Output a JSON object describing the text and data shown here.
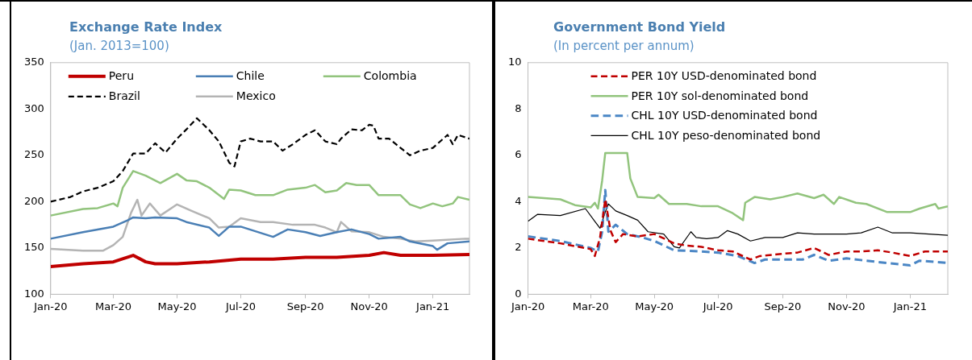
{
  "chart_data": [
    {
      "type": "line",
      "title": "Exchange Rate Index",
      "subtitle": "(Jan. 2013=100)",
      "legend": "top",
      "grid": false,
      "marker": "none",
      "xlim": [
        "2020-01-01",
        "2021-02-05"
      ],
      "xticks": [
        {
          "value": "2020-01-01",
          "label": "Jan-20"
        },
        {
          "value": "2020-03-01",
          "label": "Mar-20"
        },
        {
          "value": "2020-05-01",
          "label": "May-20"
        },
        {
          "value": "2020-07-01",
          "label": "Jul-20"
        },
        {
          "value": "2020-09-01",
          "label": "Sep-20"
        },
        {
          "value": "2020-11-01",
          "label": "Nov-20"
        },
        {
          "value": "2021-01-01",
          "label": "Jan-21"
        }
      ],
      "ylim": [
        100,
        350
      ],
      "yticks": [
        100,
        150,
        200,
        250,
        300,
        350
      ],
      "series": [
        {
          "name": "Peru",
          "color": "#c00000",
          "line_style": "solid",
          "x": [
            "2020-01-01",
            "2020-02-01",
            "2020-03-01",
            "2020-03-20",
            "2020-04-01",
            "2020-04-10",
            "2020-05-01",
            "2020-06-01",
            "2020-07-01",
            "2020-08-01",
            "2020-09-01",
            "2020-10-01",
            "2020-11-01",
            "2020-11-15",
            "2020-12-01",
            "2021-01-01",
            "2021-02-05"
          ],
          "values": [
            130,
            133,
            135,
            142,
            135,
            133,
            133,
            135,
            138,
            138,
            140,
            140,
            142,
            145,
            142,
            142,
            143
          ]
        },
        {
          "name": "Chile",
          "color": "#4a7fb5",
          "line_style": "solid",
          "x": [
            "2020-01-01",
            "2020-02-01",
            "2020-03-01",
            "2020-03-15",
            "2020-03-20",
            "2020-04-01",
            "2020-04-10",
            "2020-05-01",
            "2020-05-10",
            "2020-06-01",
            "2020-06-10",
            "2020-06-20",
            "2020-07-01",
            "2020-07-15",
            "2020-08-01",
            "2020-08-15",
            "2020-09-01",
            "2020-09-15",
            "2020-10-01",
            "2020-10-15",
            "2020-11-01",
            "2020-11-10",
            "2020-12-01",
            "2020-12-10",
            "2021-01-01",
            "2021-01-05",
            "2021-01-15",
            "2021-02-05"
          ],
          "values": [
            160,
            167,
            173,
            180,
            183,
            182,
            183,
            182,
            178,
            172,
            163,
            173,
            173,
            168,
            162,
            170,
            167,
            163,
            167,
            170,
            165,
            160,
            162,
            157,
            152,
            148,
            155,
            157
          ]
        },
        {
          "name": "Colombia",
          "color": "#92c47d",
          "line_style": "solid",
          "x": [
            "2020-01-01",
            "2020-02-01",
            "2020-02-15",
            "2020-03-01",
            "2020-03-05",
            "2020-03-10",
            "2020-03-20",
            "2020-04-01",
            "2020-04-15",
            "2020-05-01",
            "2020-05-10",
            "2020-05-20",
            "2020-06-01",
            "2020-06-15",
            "2020-06-20",
            "2020-07-01",
            "2020-07-15",
            "2020-08-01",
            "2020-08-15",
            "2020-09-01",
            "2020-09-10",
            "2020-09-20",
            "2020-10-01",
            "2020-10-10",
            "2020-10-20",
            "2020-11-01",
            "2020-11-10",
            "2020-12-01",
            "2020-12-10",
            "2020-12-20",
            "2021-01-01",
            "2021-01-10",
            "2021-01-20",
            "2021-01-25",
            "2021-02-05"
          ],
          "values": [
            185,
            192,
            193,
            198,
            195,
            215,
            233,
            228,
            220,
            230,
            223,
            222,
            215,
            203,
            213,
            212,
            207,
            207,
            213,
            215,
            218,
            210,
            212,
            220,
            218,
            218,
            207,
            207,
            197,
            193,
            198,
            195,
            198,
            205,
            202
          ]
        },
        {
          "name": "Brazil",
          "color": "#000000",
          "line_style": "dashed",
          "x": [
            "2020-01-01",
            "2020-01-20",
            "2020-02-01",
            "2020-02-15",
            "2020-03-01",
            "2020-03-10",
            "2020-03-20",
            "2020-04-01",
            "2020-04-10",
            "2020-04-20",
            "2020-05-01",
            "2020-05-10",
            "2020-05-20",
            "2020-06-01",
            "2020-06-10",
            "2020-06-20",
            "2020-06-25",
            "2020-07-01",
            "2020-07-10",
            "2020-07-20",
            "2020-08-01",
            "2020-08-10",
            "2020-08-20",
            "2020-09-01",
            "2020-09-10",
            "2020-09-20",
            "2020-10-01",
            "2020-10-05",
            "2020-10-15",
            "2020-10-25",
            "2020-11-01",
            "2020-11-05",
            "2020-11-10",
            "2020-11-20",
            "2020-12-01",
            "2020-12-10",
            "2020-12-20",
            "2021-01-01",
            "2021-01-10",
            "2021-01-15",
            "2021-01-20",
            "2021-01-25",
            "2021-02-05"
          ],
          "values": [
            200,
            205,
            211,
            215,
            222,
            233,
            252,
            252,
            263,
            253,
            268,
            278,
            290,
            277,
            265,
            242,
            238,
            265,
            268,
            265,
            265,
            255,
            262,
            272,
            277,
            265,
            262,
            268,
            278,
            277,
            283,
            282,
            268,
            268,
            258,
            250,
            255,
            258,
            267,
            272,
            262,
            272,
            268
          ]
        },
        {
          "name": "Mexico",
          "color": "#b4b4b4",
          "line_style": "solid",
          "x": [
            "2020-01-01",
            "2020-02-01",
            "2020-02-20",
            "2020-03-01",
            "2020-03-10",
            "2020-03-18",
            "2020-03-24",
            "2020-03-28",
            "2020-04-05",
            "2020-04-15",
            "2020-05-01",
            "2020-05-15",
            "2020-06-01",
            "2020-06-10",
            "2020-06-20",
            "2020-07-01",
            "2020-07-20",
            "2020-08-01",
            "2020-08-20",
            "2020-09-10",
            "2020-09-20",
            "2020-10-01",
            "2020-10-05",
            "2020-10-15",
            "2020-11-01",
            "2020-11-15",
            "2020-12-01",
            "2020-12-15",
            "2021-01-01",
            "2021-02-01",
            "2021-02-05"
          ],
          "values": [
            149,
            147,
            147,
            153,
            162,
            188,
            202,
            185,
            198,
            185,
            197,
            190,
            182,
            172,
            173,
            182,
            178,
            178,
            175,
            175,
            172,
            167,
            178,
            168,
            167,
            162,
            160,
            157,
            158,
            160,
            160
          ]
        }
      ]
    },
    {
      "type": "line",
      "title": "Government Bond Yield",
      "subtitle": "(In percent per annum)",
      "legend": "top",
      "grid": false,
      "marker": "none",
      "xlim": [
        "2020-01-01",
        "2021-02-06"
      ],
      "xticks": [
        {
          "value": "2020-01-01",
          "label": "Jan-20"
        },
        {
          "value": "2020-03-01",
          "label": "Mar-20"
        },
        {
          "value": "2020-05-01",
          "label": "May-20"
        },
        {
          "value": "2020-07-01",
          "label": "Jul-20"
        },
        {
          "value": "2020-09-01",
          "label": "Sep-20"
        },
        {
          "value": "2020-11-01",
          "label": "Nov-20"
        },
        {
          "value": "2021-01-01",
          "label": "Jan-21"
        }
      ],
      "ylim": [
        0,
        10
      ],
      "yticks": [
        0,
        2,
        4,
        6,
        8,
        10
      ],
      "series": [
        {
          "name": "PER 10Y USD-denominated bond",
          "color": "#c00000",
          "line_style": "dashed",
          "x": [
            "2020-01-01",
            "2020-02-01",
            "2020-03-01",
            "2020-03-05",
            "2020-03-10",
            "2020-03-15",
            "2020-03-20",
            "2020-03-25",
            "2020-04-01",
            "2020-04-15",
            "2020-05-01",
            "2020-05-20",
            "2020-06-01",
            "2020-06-15",
            "2020-07-01",
            "2020-07-15",
            "2020-08-01",
            "2020-08-10",
            "2020-09-01",
            "2020-09-15",
            "2020-10-01",
            "2020-10-15",
            "2020-11-01",
            "2020-11-15",
            "2020-12-01",
            "2020-12-15",
            "2021-01-01",
            "2021-01-15",
            "2021-02-06"
          ],
          "values": [
            2.4,
            2.2,
            1.95,
            1.65,
            2.45,
            4.1,
            2.75,
            2.25,
            2.6,
            2.5,
            2.6,
            2.2,
            2.1,
            2.05,
            1.9,
            1.85,
            1.5,
            1.65,
            1.75,
            1.8,
            2.0,
            1.7,
            1.85,
            1.85,
            1.9,
            1.8,
            1.65,
            1.85,
            1.85
          ]
        },
        {
          "name": "PER 10Y sol-denominated bond",
          "color": "#92c47d",
          "line_style": "solid",
          "x": [
            "2020-01-01",
            "2020-02-01",
            "2020-02-15",
            "2020-03-01",
            "2020-03-05",
            "2020-03-08",
            "2020-03-12",
            "2020-03-15",
            "2020-04-05",
            "2020-04-08",
            "2020-04-15",
            "2020-05-01",
            "2020-05-05",
            "2020-05-15",
            "2020-06-01",
            "2020-06-15",
            "2020-07-01",
            "2020-07-15",
            "2020-07-25",
            "2020-07-27",
            "2020-08-05",
            "2020-08-20",
            "2020-09-01",
            "2020-09-15",
            "2020-10-01",
            "2020-10-10",
            "2020-10-20",
            "2020-10-25",
            "2020-11-10",
            "2020-11-20",
            "2020-12-10",
            "2021-01-01",
            "2021-01-10",
            "2021-01-25",
            "2021-01-28",
            "2021-02-06"
          ],
          "values": [
            4.2,
            4.1,
            3.85,
            3.75,
            3.95,
            3.7,
            4.9,
            6.1,
            6.1,
            5.0,
            4.2,
            4.15,
            4.3,
            3.9,
            3.9,
            3.8,
            3.8,
            3.5,
            3.2,
            3.95,
            4.2,
            4.1,
            4.2,
            4.35,
            4.15,
            4.3,
            3.9,
            4.2,
            3.95,
            3.9,
            3.55,
            3.55,
            3.7,
            3.9,
            3.7,
            3.8
          ]
        },
        {
          "name": "CHL 10Y USD-denominated bond",
          "color": "#4a86c5",
          "line_style": "dashed",
          "x": [
            "2020-01-01",
            "2020-02-01",
            "2020-03-01",
            "2020-03-08",
            "2020-03-12",
            "2020-03-15",
            "2020-03-18",
            "2020-03-25",
            "2020-04-05",
            "2020-04-20",
            "2020-05-01",
            "2020-05-20",
            "2020-06-15",
            "2020-07-01",
            "2020-07-20",
            "2020-08-05",
            "2020-08-15",
            "2020-09-01",
            "2020-09-20",
            "2020-10-01",
            "2020-10-15",
            "2020-11-01",
            "2020-11-20",
            "2020-12-10",
            "2021-01-01",
            "2021-01-10",
            "2021-02-06"
          ],
          "values": [
            2.5,
            2.3,
            2.0,
            1.85,
            2.7,
            4.5,
            2.7,
            3.0,
            2.6,
            2.45,
            2.3,
            1.9,
            1.85,
            1.8,
            1.65,
            1.35,
            1.5,
            1.5,
            1.5,
            1.7,
            1.45,
            1.55,
            1.45,
            1.35,
            1.25,
            1.45,
            1.35
          ]
        },
        {
          "name": "CHL 10Y peso-denominated bond",
          "color": "#000000",
          "line_style": "solid",
          "x": [
            "2020-01-01",
            "2020-01-10",
            "2020-02-01",
            "2020-02-25",
            "2020-03-05",
            "2020-03-10",
            "2020-03-15",
            "2020-03-18",
            "2020-03-25",
            "2020-04-05",
            "2020-04-15",
            "2020-04-25",
            "2020-05-10",
            "2020-05-20",
            "2020-05-25",
            "2020-06-05",
            "2020-06-10",
            "2020-06-20",
            "2020-07-01",
            "2020-07-10",
            "2020-07-20",
            "2020-08-01",
            "2020-08-15",
            "2020-09-01",
            "2020-09-15",
            "2020-10-01",
            "2020-11-01",
            "2020-11-15",
            "2020-12-01",
            "2020-12-15",
            "2021-01-01",
            "2021-02-06"
          ],
          "values": [
            3.15,
            3.45,
            3.4,
            3.7,
            3.15,
            2.85,
            3.55,
            3.9,
            3.6,
            3.4,
            3.2,
            2.7,
            2.6,
            2.05,
            2.0,
            2.7,
            2.45,
            2.4,
            2.45,
            2.75,
            2.6,
            2.3,
            2.45,
            2.45,
            2.65,
            2.6,
            2.6,
            2.65,
            2.9,
            2.65,
            2.65,
            2.55
          ]
        }
      ]
    }
  ]
}
